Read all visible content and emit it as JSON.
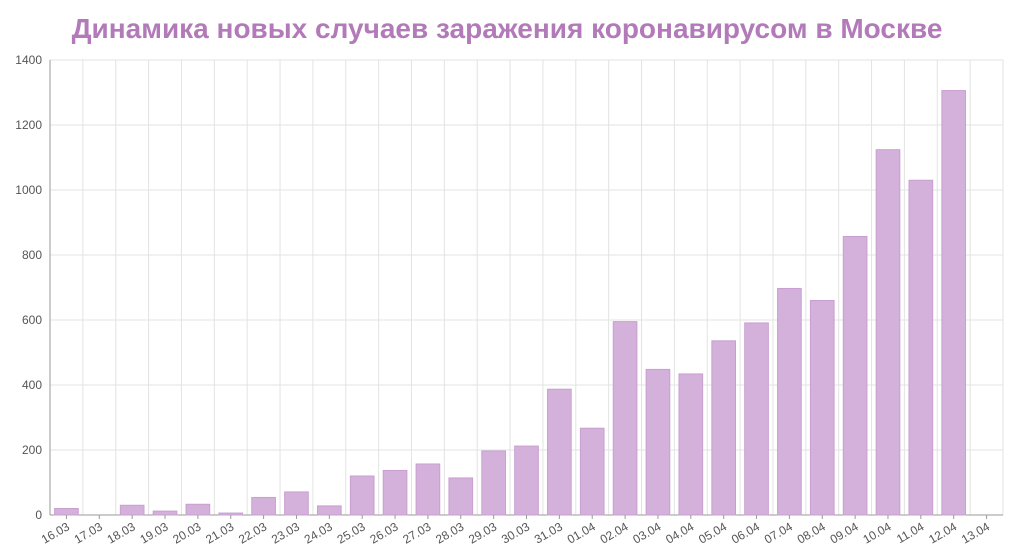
{
  "chart_data": {
    "type": "bar",
    "title": "Динамика новых случаев заражения коронавирусом в Москве",
    "xlabel": "",
    "ylabel": "",
    "categories": [
      "16.03",
      "17.03",
      "18.03",
      "19.03",
      "20.03",
      "21.03",
      "22.03",
      "23.03",
      "24.03",
      "25.03",
      "26.03",
      "27.03",
      "28.03",
      "29.03",
      "30.03",
      "31.03",
      "01.04",
      "02.04",
      "03.04",
      "04.04",
      "05.04",
      "06.04",
      "07.04",
      "08.04",
      "09.04",
      "10.04",
      "11.04",
      "12.04",
      "13.04"
    ],
    "values": [
      20,
      0,
      30,
      12,
      33,
      6,
      54,
      71,
      28,
      120,
      137,
      157,
      114,
      197,
      212,
      387,
      267,
      595,
      448,
      434,
      536,
      591,
      697,
      660,
      857,
      1124,
      1030,
      1306,
      0
    ],
    "ylim": [
      0,
      1400
    ],
    "yticks": [
      0,
      200,
      400,
      600,
      800,
      1000,
      1200,
      1400
    ],
    "grid": true,
    "legend": "none",
    "colors": {
      "bar_fill": "#d4b1da",
      "bar_stroke": "#c99fd1",
      "title": "#b27ab8",
      "grid": "#e3e3e3",
      "axis": "#9a9a9a"
    }
  }
}
